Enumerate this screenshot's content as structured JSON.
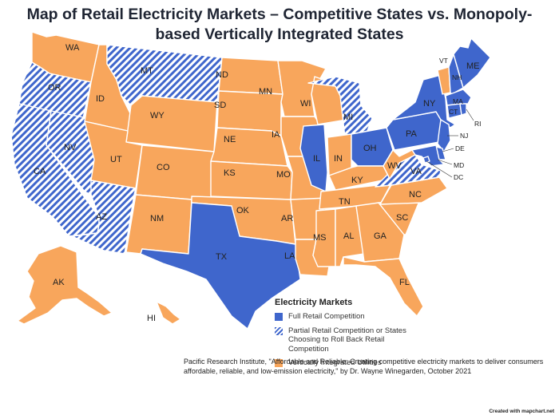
{
  "title": {
    "line1": "Map of Retail Electricity Markets – Competitive States vs. Monopoly-",
    "line2": "based Vertically Integrated States"
  },
  "colors": {
    "full": "#3f66cc",
    "partial": "#3f66cc",
    "vertical": "#f8a65c",
    "border": "#ffffff"
  },
  "states": {
    "WA": {
      "label": "WA",
      "category": "vertical"
    },
    "OR": {
      "label": "OR",
      "category": "partial"
    },
    "CA": {
      "label": "CA",
      "category": "partial"
    },
    "NV": {
      "label": "NV",
      "category": "partial"
    },
    "ID": {
      "label": "ID",
      "category": "vertical"
    },
    "MT": {
      "label": "MT",
      "category": "partial"
    },
    "WY": {
      "label": "WY",
      "category": "vertical"
    },
    "UT": {
      "label": "UT",
      "category": "vertical"
    },
    "AZ": {
      "label": "AZ",
      "category": "partial"
    },
    "CO": {
      "label": "CO",
      "category": "vertical"
    },
    "NM": {
      "label": "NM",
      "category": "vertical"
    },
    "ND": {
      "label": "ND",
      "category": "vertical"
    },
    "SD": {
      "label": "SD",
      "category": "vertical"
    },
    "NE": {
      "label": "NE",
      "category": "vertical"
    },
    "KS": {
      "label": "KS",
      "category": "vertical"
    },
    "OK": {
      "label": "OK",
      "category": "vertical"
    },
    "TX": {
      "label": "TX",
      "category": "full"
    },
    "MN": {
      "label": "MN",
      "category": "vertical"
    },
    "IA": {
      "label": "IA",
      "category": "vertical"
    },
    "MO": {
      "label": "MO",
      "category": "vertical"
    },
    "AR": {
      "label": "AR",
      "category": "vertical"
    },
    "LA": {
      "label": "LA",
      "category": "vertical"
    },
    "WI": {
      "label": "WI",
      "category": "vertical"
    },
    "IL": {
      "label": "IL",
      "category": "full"
    },
    "MI": {
      "label": "MI",
      "category": "partial"
    },
    "IN": {
      "label": "IN",
      "category": "vertical"
    },
    "OH": {
      "label": "OH",
      "category": "full"
    },
    "KY": {
      "label": "KY",
      "category": "vertical"
    },
    "TN": {
      "label": "TN",
      "category": "vertical"
    },
    "MS": {
      "label": "MS",
      "category": "vertical"
    },
    "AL": {
      "label": "AL",
      "category": "vertical"
    },
    "GA": {
      "label": "GA",
      "category": "vertical"
    },
    "FL": {
      "label": "FL",
      "category": "vertical"
    },
    "SC": {
      "label": "SC",
      "category": "vertical"
    },
    "NC": {
      "label": "NC",
      "category": "vertical"
    },
    "VA": {
      "label": "VA",
      "category": "partial"
    },
    "WV": {
      "label": "WV",
      "category": "vertical"
    },
    "PA": {
      "label": "PA",
      "category": "full"
    },
    "NY": {
      "label": "NY",
      "category": "full"
    },
    "VT": {
      "label": "VT",
      "category": "vertical"
    },
    "NH": {
      "label": "NH",
      "category": "full"
    },
    "ME": {
      "label": "ME",
      "category": "full"
    },
    "MA": {
      "label": "MA",
      "category": "full"
    },
    "RI": {
      "label": "RI",
      "category": "full"
    },
    "CT": {
      "label": "CT",
      "category": "full"
    },
    "NJ": {
      "label": "NJ",
      "category": "full"
    },
    "DE": {
      "label": "DE",
      "category": "full"
    },
    "MD": {
      "label": "MD",
      "category": "full"
    },
    "DC": {
      "label": "DC",
      "category": "full"
    },
    "AK": {
      "label": "AK",
      "category": "vertical"
    },
    "HI": {
      "label": "HI",
      "category": "vertical"
    }
  },
  "legend": {
    "title": "Electricity Markets",
    "items": [
      {
        "category": "full",
        "label": "Full Retail Competition"
      },
      {
        "category": "partial",
        "label": "Partial Retail Competition or States Choosing to Roll Back Retail Competition"
      },
      {
        "category": "vertical",
        "label": "Vertically Integrated Utilities"
      }
    ]
  },
  "source": "Pacific Research Institute, \"Affordable and Reliable: Creating competitive electricity markets to deliver consumers affordable, reliable, and low-emission electricity,\" by Dr. Wayne Winegarden, October 2021",
  "credit": "Created with mapchart.net"
}
